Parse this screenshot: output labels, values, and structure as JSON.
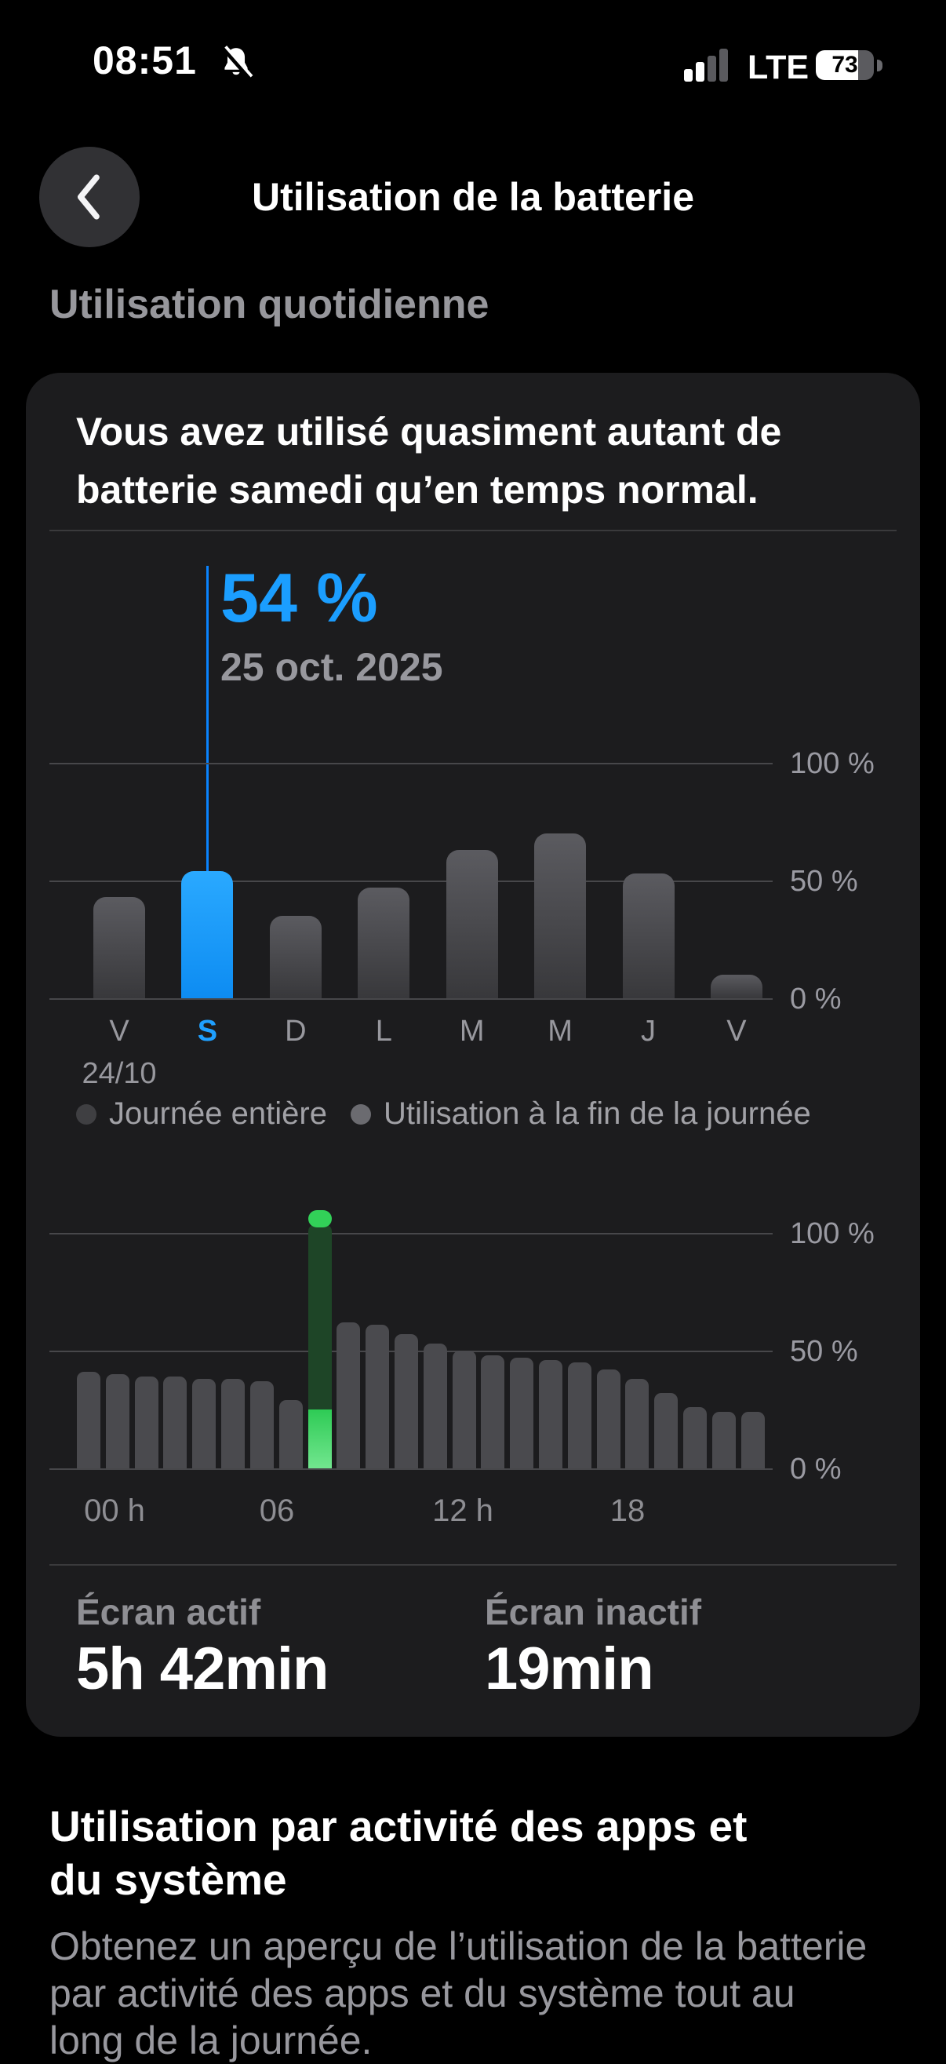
{
  "status_bar": {
    "time": "08:51",
    "network": "LTE",
    "battery_percent": "73"
  },
  "nav": {
    "title": "Utilisation de la batterie"
  },
  "section": {
    "daily_header": "Utilisation quotidienne"
  },
  "card": {
    "headline_lines": [
      "Vous avez utilisé quasiment autant de",
      "batterie samedi qu’en temps normal."
    ],
    "selection": {
      "percent": "54 %",
      "date": "25 oct. 2025"
    },
    "legend": [
      {
        "label": "Journée entière"
      },
      {
        "label": "Utilisation à la fin de la journée"
      }
    ],
    "stats": [
      {
        "label": "Écran actif",
        "value": "5h 42min"
      },
      {
        "label": "Écran inactif",
        "value": "19min"
      }
    ]
  },
  "footer": {
    "heading_lines": [
      "Utilisation par activité des apps et",
      "du système"
    ],
    "body_lines": [
      "Obtenez un aperçu de l’utilisation de la batterie",
      "par activité des apps et du système tout au",
      "long de la journée."
    ]
  },
  "colors": {
    "accent_blue": "#1b9eff",
    "selection_line": "#0a84ff",
    "charge_green": "#32d158",
    "card_bg": "#1c1c1e"
  },
  "chart_data": [
    {
      "type": "bar",
      "title": "Utilisation quotidienne de la batterie par jour",
      "categories": [
        "V",
        "S",
        "D",
        "L",
        "M",
        "M",
        "J",
        "V"
      ],
      "values": [
        43,
        54,
        35,
        47,
        63,
        70,
        53,
        10
      ],
      "selected_index": 1,
      "selected_value_label": "54 %",
      "selected_date": "25 oct. 2025",
      "first_category_date": "24/10",
      "yticks": [
        "100 %",
        "50 %",
        "0 %"
      ],
      "ylim": [
        0,
        100
      ],
      "grid": true,
      "ytick_side": "right"
    },
    {
      "type": "bar",
      "title": "Niveau de batterie par heure",
      "hours": [
        0,
        1,
        2,
        3,
        4,
        5,
        6,
        7,
        8,
        9,
        10,
        11,
        12,
        13,
        14,
        15,
        16,
        17,
        18,
        19,
        20,
        21,
        22,
        23
      ],
      "values": [
        41,
        40,
        39,
        39,
        38,
        38,
        37,
        29,
        25,
        62,
        61,
        57,
        53,
        50,
        48,
        47,
        46,
        45,
        42,
        38,
        32,
        26,
        24,
        24
      ],
      "charging": {
        "hour": 8,
        "level_percent": 25,
        "cap_top_percent": 109
      },
      "xticks": [
        "00 h",
        "06",
        "12 h",
        "18"
      ],
      "yticks": [
        "100 %",
        "50 %",
        "0 %"
      ],
      "ylim": [
        0,
        100
      ],
      "grid": true,
      "ytick_side": "right"
    }
  ]
}
